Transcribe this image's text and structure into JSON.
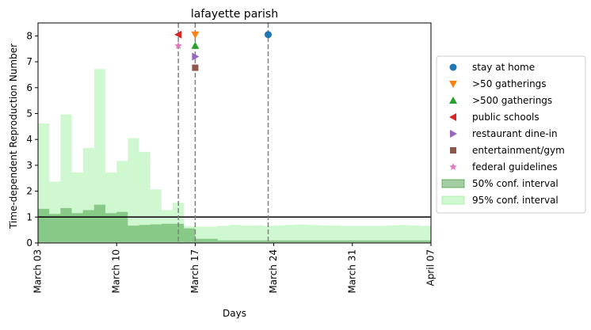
{
  "chart_data": {
    "type": "step-area",
    "title": "lafayette parish",
    "xlabel": "Days",
    "ylabel": "Time-dependent Reproduction Number",
    "xlim": [
      "2020-03-03",
      "2020-04-07"
    ],
    "ylim": [
      0,
      8.5
    ],
    "xticks": [
      {
        "date": "2020-03-03",
        "label": "March 03"
      },
      {
        "date": "2020-03-10",
        "label": "March 10"
      },
      {
        "date": "2020-03-17",
        "label": "March 17"
      },
      {
        "date": "2020-03-24",
        "label": "March 24"
      },
      {
        "date": "2020-03-31",
        "label": "March 31"
      },
      {
        "date": "2020-04-07",
        "label": "April 07"
      }
    ],
    "yticks": [
      0,
      1,
      2,
      3,
      4,
      5,
      6,
      7,
      8
    ],
    "reference_line": {
      "y": 1,
      "color": "#000000"
    },
    "grid": false,
    "legend_position": "outside-right",
    "bands": {
      "start_date": "2020-03-03",
      "dates": [
        "2020-03-03",
        "2020-03-04",
        "2020-03-05",
        "2020-03-06",
        "2020-03-07",
        "2020-03-08",
        "2020-03-09",
        "2020-03-10",
        "2020-03-11",
        "2020-03-12",
        "2020-03-13",
        "2020-03-14",
        "2020-03-15",
        "2020-03-16",
        "2020-03-17",
        "2020-03-18",
        "2020-03-19",
        "2020-03-20",
        "2020-03-21",
        "2020-03-22",
        "2020-03-23",
        "2020-03-24",
        "2020-03-25",
        "2020-03-26",
        "2020-03-27",
        "2020-03-28",
        "2020-03-29",
        "2020-03-30",
        "2020-03-31",
        "2020-04-01",
        "2020-04-02",
        "2020-04-03",
        "2020-04-04",
        "2020-04-05",
        "2020-04-06",
        "2020-04-07"
      ],
      "ci95": {
        "name": "95% conf. interval",
        "color": "#90ee90",
        "opacity": 0.42,
        "lower": [
          0.05,
          0.05,
          0.05,
          0.05,
          0.05,
          0.05,
          0.05,
          0.05,
          0.05,
          0.05,
          0.05,
          0.05,
          0.05,
          0.05,
          0.05,
          0.05,
          0.05,
          0.05,
          0.05,
          0.05,
          0.05,
          0.05,
          0.05,
          0.05,
          0.05,
          0.05,
          0.05,
          0.05,
          0.05,
          0.05,
          0.05,
          0.05,
          0.05,
          0.05,
          0.05
        ],
        "upper": [
          4.62,
          2.37,
          4.97,
          2.72,
          3.67,
          6.72,
          2.72,
          3.17,
          4.05,
          3.52,
          2.07,
          1.27,
          1.55,
          0.65,
          0.63,
          0.63,
          0.66,
          0.7,
          0.68,
          0.68,
          0.66,
          0.68,
          0.7,
          0.71,
          0.7,
          0.68,
          0.68,
          0.66,
          0.66,
          0.66,
          0.66,
          0.68,
          0.7,
          0.68,
          0.66
        ]
      },
      "ci50": {
        "name": "50% conf. interval",
        "color": "#228b22",
        "opacity": 0.42,
        "lower": [
          0,
          0,
          0,
          0,
          0,
          0,
          0,
          0,
          0,
          0,
          0,
          0,
          0,
          0,
          0,
          0,
          0,
          0,
          0,
          0,
          0,
          0,
          0,
          0,
          0,
          0,
          0,
          0,
          0,
          0,
          0,
          0,
          0,
          0,
          0
        ],
        "upper": [
          1.32,
          1.12,
          1.35,
          1.15,
          1.27,
          1.48,
          1.15,
          1.2,
          0.67,
          0.7,
          0.72,
          0.74,
          0.74,
          0.56,
          0.16,
          0.16,
          0.1,
          0.1,
          0.1,
          0.1,
          0.1,
          0.1,
          0.1,
          0.1,
          0.1,
          0.1,
          0.1,
          0.1,
          0.1,
          0.1,
          0.1,
          0.1,
          0.1,
          0.1,
          0.1
        ]
      }
    },
    "vlines": [
      {
        "date": "2020-03-15.5",
        "style": "dashed",
        "color": "#808080"
      },
      {
        "date": "2020-03-17",
        "style": "dashed",
        "color": "#808080"
      },
      {
        "date": "2020-03-23.5",
        "style": "dashed",
        "color": "#808080"
      }
    ],
    "markers": [
      {
        "name": "stay at home",
        "date": "2020-03-23.5",
        "y": 8.05,
        "shape": "circle",
        "color": "#1f77b4"
      },
      {
        "name": ">50 gatherings",
        "date": "2020-03-17",
        "y": 8.05,
        "shape": "triangle-down",
        "color": "#ff7f0e"
      },
      {
        "name": ">500 gatherings",
        "date": "2020-03-17",
        "y": 7.62,
        "shape": "triangle-up",
        "color": "#2ca02c"
      },
      {
        "name": "public schools",
        "date": "2020-03-15.5",
        "y": 8.05,
        "shape": "triangle-left",
        "color": "#d62728"
      },
      {
        "name": "restaurant dine-in",
        "date": "2020-03-17",
        "y": 7.2,
        "shape": "triangle-right",
        "color": "#9467bd"
      },
      {
        "name": "entertainment/gym",
        "date": "2020-03-17",
        "y": 6.77,
        "shape": "square",
        "color": "#8c564b"
      },
      {
        "name": "federal guidelines",
        "date": "2020-03-15.5",
        "y": 7.62,
        "shape": "star",
        "color": "#e377c2"
      }
    ],
    "legend": [
      {
        "label": "stay at home",
        "shape": "circle",
        "color": "#1f77b4"
      },
      {
        "label": ">50 gatherings",
        "shape": "triangle-down",
        "color": "#ff7f0e"
      },
      {
        "label": ">500 gatherings",
        "shape": "triangle-up",
        "color": "#2ca02c"
      },
      {
        "label": "public schools",
        "shape": "triangle-left",
        "color": "#d62728"
      },
      {
        "label": "restaurant dine-in",
        "shape": "triangle-right",
        "color": "#9467bd"
      },
      {
        "label": "entertainment/gym",
        "shape": "square",
        "color": "#8c564b"
      },
      {
        "label": "federal guidelines",
        "shape": "star",
        "color": "#e377c2"
      },
      {
        "label": "50% conf. interval",
        "shape": "patch",
        "color": "#228b22",
        "opacity": 0.42
      },
      {
        "label": "95% conf. interval",
        "shape": "patch",
        "color": "#90ee90",
        "opacity": 0.42
      }
    ]
  }
}
